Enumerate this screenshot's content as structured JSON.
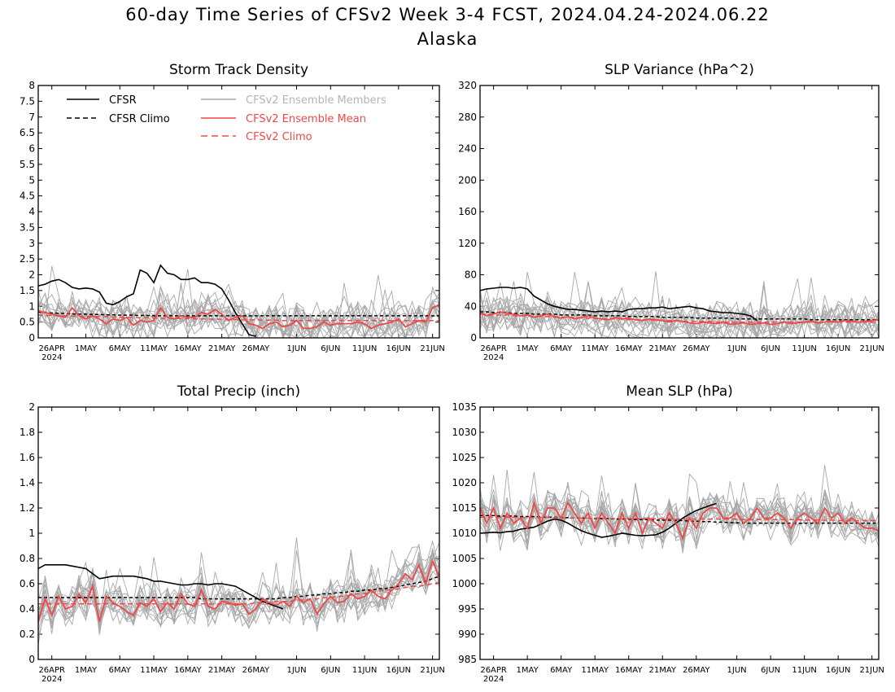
{
  "title": "60-day Time Series of CFSv2 Week 3-4 FCST, 2024.04.24-2024.06.22",
  "region": "Alaska",
  "x_tick_labels": [
    "26APR",
    "1MAY",
    "6MAY",
    "11MAY",
    "16MAY",
    "21MAY",
    "26MAY",
    "1JUN",
    "6JUN",
    "11JUN",
    "16JUN",
    "21JUN"
  ],
  "x_year_label": "2024",
  "legend": {
    "cfsr": "CFSR",
    "cfsr_climo": "CFSR Climo",
    "members": "CFSv2 Ensemble Members",
    "mean": "CFSv2 Ensemble Mean",
    "cfsv2_climo": "CFSv2 Climo"
  },
  "colors": {
    "cfsr": "#000000",
    "mean": "#f04848",
    "members": "#a8a8a8",
    "members_text": "#b4b4b4"
  },
  "chart_data": [
    {
      "type": "line",
      "title": "Storm Track Density",
      "ylim": [
        0,
        8
      ],
      "y_ticks": [
        "0",
        "0.5",
        "1",
        "1.5",
        "2",
        "2.5",
        "3",
        "3.5",
        "4",
        "4.5",
        "5",
        "5.5",
        "6",
        "6.5",
        "7",
        "7.5",
        "8"
      ],
      "x_days": "2024-04-24 .. 2024-06-22",
      "series": [
        {
          "name": "CFSR",
          "values": [
            1.65,
            1.7,
            1.8,
            1.85,
            1.75,
            1.6,
            1.55,
            1.58,
            1.55,
            1.45,
            1.1,
            1.05,
            1.15,
            1.3,
            1.4,
            2.15,
            2.05,
            1.75,
            2.3,
            2.05,
            2.0,
            1.85,
            1.85,
            1.9,
            1.75,
            1.75,
            1.7,
            1.55,
            1.2,
            0.8,
            0.45,
            0.1,
            0.05
          ]
        },
        {
          "name": "CFSR Climo",
          "values": [
            0.82,
            0.8,
            0.79,
            0.78,
            0.77,
            0.76,
            0.75,
            0.75,
            0.74,
            0.74,
            0.73,
            0.73,
            0.72,
            0.72,
            0.72,
            0.71,
            0.71,
            0.7,
            0.7,
            0.7,
            0.7,
            0.7,
            0.7,
            0.7,
            0.7,
            0.7,
            0.7,
            0.7,
            0.7,
            0.7,
            0.7,
            0.7,
            0.7,
            0.7,
            0.7,
            0.7,
            0.7,
            0.7,
            0.7,
            0.7,
            0.7,
            0.7,
            0.7,
            0.7,
            0.7,
            0.7,
            0.7,
            0.7,
            0.7,
            0.7,
            0.7,
            0.7,
            0.7,
            0.7,
            0.7,
            0.7,
            0.7,
            0.7,
            0.7,
            0.7
          ]
        },
        {
          "name": "CFSv2 Ensemble Mean",
          "values": [
            0.85,
            0.8,
            0.75,
            0.7,
            0.65,
            0.95,
            0.7,
            0.6,
            0.7,
            0.6,
            0.45,
            0.6,
            0.55,
            0.65,
            0.4,
            0.55,
            0.5,
            0.55,
            0.95,
            0.65,
            0.6,
            0.7,
            0.65,
            0.65,
            0.8,
            0.75,
            0.9,
            0.75,
            0.55,
            0.65,
            0.7,
            0.45,
            0.4,
            0.3,
            0.45,
            0.5,
            0.35,
            0.4,
            0.55,
            0.3,
            0.3,
            0.35,
            0.5,
            0.4,
            0.45,
            0.45,
            0.45,
            0.5,
            0.45,
            0.3,
            0.4,
            0.45,
            0.5,
            0.6,
            0.35,
            0.45,
            0.55,
            0.5,
            0.95,
            1.05
          ]
        },
        {
          "name": "CFSv2 Climo",
          "values": [
            0.72,
            0.71,
            0.71,
            0.7,
            0.7,
            0.69,
            0.69,
            0.68,
            0.68,
            0.67,
            0.67,
            0.66,
            0.66,
            0.65,
            0.65,
            0.64,
            0.64,
            0.63,
            0.63,
            0.62,
            0.62,
            0.61,
            0.61,
            0.6,
            0.6,
            0.6,
            0.59,
            0.59,
            0.58,
            0.58,
            0.57,
            0.57,
            0.57,
            0.56,
            0.56,
            0.56,
            0.55,
            0.55,
            0.55,
            0.55,
            0.55,
            0.55,
            0.55,
            0.55,
            0.55,
            0.55,
            0.55,
            0.55,
            0.55,
            0.55,
            0.55,
            0.55,
            0.55,
            0.55,
            0.55,
            0.55,
            0.55,
            0.55,
            0.55,
            0.55
          ]
        }
      ]
    },
    {
      "type": "line",
      "title": "SLP Variance (hPa^2)",
      "ylim": [
        0,
        320
      ],
      "y_ticks": [
        "0",
        "40",
        "80",
        "120",
        "160",
        "200",
        "240",
        "280",
        "320"
      ],
      "x_days": "2024-04-24 .. 2024-06-22",
      "series": [
        {
          "name": "CFSR",
          "values": [
            60,
            62,
            63,
            64,
            64,
            63,
            64,
            62,
            53,
            48,
            43,
            40,
            38,
            36,
            36,
            35,
            34,
            33,
            34,
            33,
            34,
            33,
            36,
            37,
            37,
            38,
            38,
            39,
            37,
            38,
            39,
            40,
            38,
            37,
            34,
            33,
            32,
            32,
            31,
            30,
            28,
            22
          ]
        },
        {
          "name": "CFSR Climo",
          "values": [
            33,
            33,
            32,
            32,
            32,
            31,
            31,
            31,
            30,
            30,
            30,
            30,
            29,
            29,
            29,
            29,
            29,
            28,
            28,
            28,
            28,
            28,
            27,
            27,
            27,
            27,
            27,
            26,
            26,
            26,
            26,
            26,
            25,
            25,
            25,
            25,
            25,
            25,
            24,
            24,
            24,
            24,
            24,
            24,
            24,
            24,
            24,
            24,
            24,
            23,
            23,
            23,
            23,
            23,
            23,
            23,
            23,
            23,
            23,
            23
          ]
        },
        {
          "name": "CFSv2 Ensemble Mean",
          "values": [
            32,
            28,
            30,
            33,
            31,
            30,
            28,
            29,
            26,
            28,
            30,
            27,
            25,
            27,
            24,
            26,
            28,
            25,
            24,
            23,
            26,
            24,
            25,
            23,
            22,
            24,
            23,
            22,
            20,
            22,
            21,
            19,
            18,
            20,
            19,
            18,
            20,
            17,
            18,
            19,
            17,
            18,
            19,
            17,
            18,
            20,
            18,
            19,
            20,
            21,
            19,
            20,
            21,
            20,
            22,
            21,
            20,
            21,
            22,
            23
          ]
        },
        {
          "name": "CFSv2 Climo",
          "values": [
            30,
            30,
            29,
            29,
            29,
            28,
            28,
            28,
            27,
            27,
            27,
            26,
            26,
            26,
            26,
            25,
            25,
            25,
            24,
            24,
            24,
            24,
            23,
            23,
            23,
            23,
            22,
            22,
            22,
            22,
            21,
            21,
            21,
            21,
            21,
            20,
            20,
            20,
            20,
            20,
            20,
            20,
            20,
            20,
            20,
            20,
            20,
            20,
            20,
            20,
            20,
            20,
            20,
            20,
            20,
            20,
            20,
            20,
            20,
            20
          ]
        }
      ]
    },
    {
      "type": "line",
      "title": "Total Precip (inch)",
      "ylim": [
        0,
        2
      ],
      "y_ticks": [
        "0",
        "0.2",
        "0.4",
        "0.6",
        "0.8",
        "1",
        "1.2",
        "1.4",
        "1.6",
        "1.8",
        "2"
      ],
      "x_days": "2024-04-24 .. 2024-06-22",
      "series": [
        {
          "name": "CFSR",
          "values": [
            0.72,
            0.75,
            0.75,
            0.75,
            0.75,
            0.74,
            0.73,
            0.72,
            0.68,
            0.64,
            0.65,
            0.66,
            0.66,
            0.66,
            0.66,
            0.65,
            0.64,
            0.62,
            0.62,
            0.61,
            0.6,
            0.59,
            0.59,
            0.6,
            0.6,
            0.59,
            0.6,
            0.6,
            0.59,
            0.58,
            0.55,
            0.52,
            0.49,
            0.46,
            0.44,
            0.42,
            0.4
          ]
        },
        {
          "name": "CFSR Climo",
          "values": [
            0.49,
            0.49,
            0.49,
            0.49,
            0.49,
            0.49,
            0.49,
            0.49,
            0.49,
            0.49,
            0.49,
            0.49,
            0.49,
            0.49,
            0.49,
            0.49,
            0.49,
            0.49,
            0.49,
            0.49,
            0.49,
            0.49,
            0.49,
            0.49,
            0.48,
            0.48,
            0.48,
            0.48,
            0.48,
            0.48,
            0.48,
            0.48,
            0.48,
            0.48,
            0.48,
            0.48,
            0.49,
            0.49,
            0.5,
            0.5,
            0.51,
            0.51,
            0.52,
            0.52,
            0.53,
            0.53,
            0.54,
            0.54,
            0.55,
            0.55,
            0.56,
            0.56,
            0.57,
            0.58,
            0.59,
            0.6,
            0.61,
            0.62,
            0.64,
            0.66
          ]
        },
        {
          "name": "CFSv2 Ensemble Mean",
          "values": [
            0.3,
            0.48,
            0.35,
            0.5,
            0.4,
            0.42,
            0.52,
            0.45,
            0.58,
            0.3,
            0.5,
            0.45,
            0.42,
            0.38,
            0.35,
            0.45,
            0.42,
            0.48,
            0.38,
            0.45,
            0.4,
            0.52,
            0.44,
            0.42,
            0.55,
            0.42,
            0.4,
            0.46,
            0.45,
            0.43,
            0.44,
            0.36,
            0.4,
            0.48,
            0.45,
            0.43,
            0.46,
            0.42,
            0.5,
            0.45,
            0.48,
            0.36,
            0.44,
            0.5,
            0.45,
            0.46,
            0.52,
            0.48,
            0.5,
            0.55,
            0.5,
            0.48,
            0.55,
            0.6,
            0.68,
            0.63,
            0.75,
            0.6,
            0.78,
            0.65
          ]
        },
        {
          "name": "CFSv2 Climo",
          "values": [
            0.44,
            0.44,
            0.44,
            0.44,
            0.44,
            0.44,
            0.44,
            0.44,
            0.44,
            0.44,
            0.44,
            0.44,
            0.44,
            0.44,
            0.44,
            0.44,
            0.44,
            0.44,
            0.44,
            0.44,
            0.44,
            0.44,
            0.44,
            0.44,
            0.44,
            0.44,
            0.44,
            0.44,
            0.44,
            0.44,
            0.44,
            0.44,
            0.45,
            0.45,
            0.45,
            0.46,
            0.46,
            0.46,
            0.47,
            0.47,
            0.48,
            0.48,
            0.49,
            0.49,
            0.5,
            0.5,
            0.51,
            0.52,
            0.52,
            0.53,
            0.54,
            0.55,
            0.55,
            0.56,
            0.57,
            0.58,
            0.58,
            0.59,
            0.6,
            0.61
          ]
        }
      ]
    },
    {
      "type": "line",
      "title": "Mean SLP (hPa)",
      "ylim": [
        985,
        1035
      ],
      "y_ticks": [
        "985",
        "990",
        "995",
        "1000",
        "1005",
        "1010",
        "1015",
        "1020",
        "1025",
        "1030",
        "1035"
      ],
      "x_days": "2024-04-24 .. 2024-06-22",
      "series": [
        {
          "name": "CFSR",
          "values": [
            1010.0,
            1010.1,
            1010.2,
            1010.1,
            1010.3,
            1010.4,
            1010.8,
            1011.0,
            1011.2,
            1011.8,
            1012.4,
            1012.8,
            1012.6,
            1012.0,
            1011.2,
            1010.5,
            1010.0,
            1009.6,
            1009.2,
            1009.4,
            1009.7,
            1010.0,
            1009.8,
            1009.6,
            1009.5,
            1009.6,
            1009.7,
            1010.2,
            1011.0,
            1012.0,
            1013.0,
            1013.8,
            1014.5,
            1015.0,
            1015.5,
            1015.9
          ]
        },
        {
          "name": "CFSR Climo",
          "values": [
            1013.5,
            1013.5,
            1013.5,
            1013.4,
            1013.4,
            1013.4,
            1013.3,
            1013.3,
            1013.3,
            1013.2,
            1013.2,
            1013.2,
            1013.1,
            1013.1,
            1013.0,
            1013.0,
            1013.0,
            1012.9,
            1012.9,
            1012.9,
            1012.8,
            1012.8,
            1012.8,
            1012.7,
            1012.7,
            1012.7,
            1012.6,
            1012.6,
            1012.6,
            1012.5,
            1012.5,
            1012.4,
            1012.4,
            1012.3,
            1012.3,
            1012.2,
            1012.2,
            1012.1,
            1012.1,
            1012.0,
            1012.0,
            1012.0,
            1012.0,
            1012.0,
            1012.0,
            1012.0,
            1012.0,
            1012.0,
            1012.0,
            1012.0,
            1012.0,
            1012.0,
            1012.0,
            1012.0,
            1012.0,
            1012.0,
            1012.0,
            1012.0,
            1012.0,
            1012.0
          ]
        },
        {
          "name": "CFSv2 Ensemble Mean",
          "values": [
            1015.0,
            1012.0,
            1015.0,
            1011.0,
            1014.0,
            1012.0,
            1013.0,
            1011.0,
            1016.0,
            1012.0,
            1015.0,
            1015.0,
            1013.0,
            1016.0,
            1014.0,
            1012.0,
            1014.0,
            1011.0,
            1014.0,
            1012.0,
            1010.0,
            1014.0,
            1011.0,
            1014.0,
            1010.0,
            1013.0,
            1012.0,
            1011.0,
            1014.0,
            1012.0,
            1009.0,
            1013.0,
            1011.0,
            1014.0,
            1015.0,
            1015.0,
            1013.0,
            1013.0,
            1014.0,
            1012.0,
            1013.0,
            1015.0,
            1013.0,
            1013.0,
            1014.0,
            1013.0,
            1011.0,
            1013.0,
            1014.0,
            1013.0,
            1012.0,
            1015.0,
            1013.0,
            1014.0,
            1012.0,
            1013.0,
            1012.0,
            1011.0,
            1011.0,
            1010.5
          ]
        },
        {
          "name": "CFSv2 Climo",
          "values": [
            1013.2,
            1013.2,
            1013.2,
            1013.2,
            1013.2,
            1013.2,
            1013.1,
            1013.1,
            1013.1,
            1013.1,
            1013.1,
            1013.1,
            1013.0,
            1013.0,
            1013.0,
            1013.0,
            1013.0,
            1013.0,
            1013.0,
            1012.9,
            1012.9,
            1012.9,
            1012.9,
            1012.9,
            1012.9,
            1012.9,
            1012.9,
            1012.9,
            1012.9,
            1012.8,
            1012.8,
            1012.8,
            1012.8,
            1012.8,
            1012.8,
            1012.8,
            1012.8,
            1012.8,
            1012.8,
            1012.7,
            1012.7,
            1012.7,
            1012.7,
            1012.7,
            1012.7,
            1012.7,
            1012.7,
            1012.7,
            1012.6,
            1012.6,
            1012.6,
            1012.6,
            1012.6,
            1012.5,
            1012.5,
            1012.5,
            1012.5,
            1012.5,
            1012.5,
            1012.5
          ]
        }
      ]
    }
  ]
}
